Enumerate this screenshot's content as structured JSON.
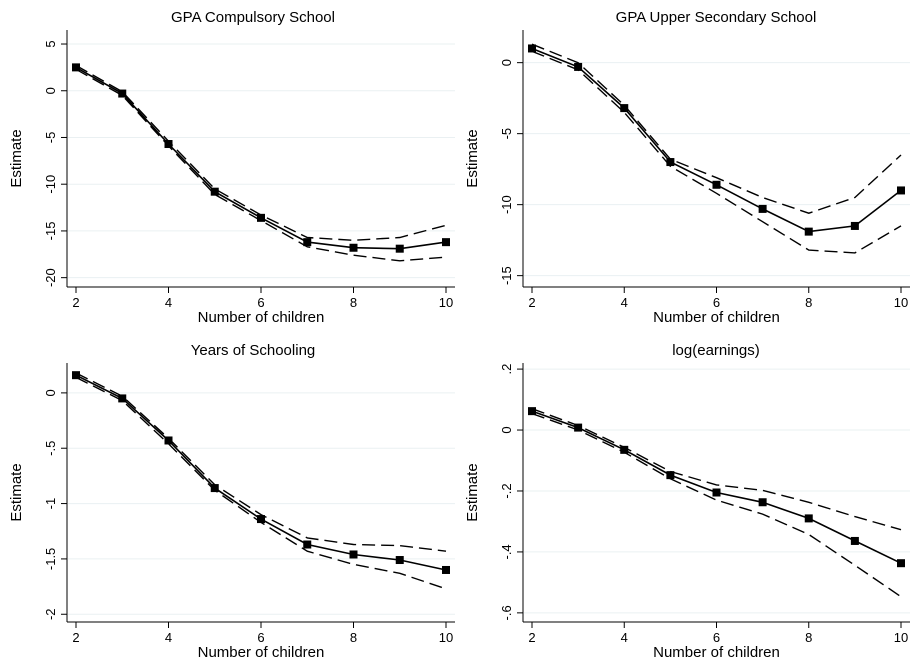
{
  "chart_data": [
    {
      "type": "line",
      "title": "GPA Compulsory School",
      "xlabel": "Number of children",
      "ylabel": "Estimate",
      "x": [
        2,
        3,
        4,
        5,
        6,
        7,
        8,
        9,
        10
      ],
      "xlim": [
        2,
        10
      ],
      "ylim": [
        -21,
        6.5
      ],
      "xticks": [
        2,
        4,
        6,
        8,
        10
      ],
      "xtick_labels": [
        "2",
        "4",
        "6",
        "8",
        "10"
      ],
      "yticks": [
        5,
        0,
        -5,
        -10,
        -15,
        -20
      ],
      "ytick_labels": [
        "5",
        "0",
        "-5",
        "-10",
        "-15",
        "-20"
      ],
      "grid": true,
      "series": [
        {
          "role": "estimate",
          "values": [
            2.5,
            -0.3,
            -5.7,
            -10.8,
            -13.6,
            -16.2,
            -16.8,
            -16.9,
            -16.2
          ]
        },
        {
          "role": "upper",
          "values": [
            2.7,
            -0.1,
            -5.4,
            -10.5,
            -13.3,
            -15.7,
            -16.0,
            -15.7,
            -14.4
          ]
        },
        {
          "role": "lower",
          "values": [
            2.3,
            -0.5,
            -5.9,
            -11.1,
            -13.9,
            -16.7,
            -17.6,
            -18.2,
            -17.8
          ]
        }
      ]
    },
    {
      "type": "line",
      "title": "GPA Upper Secondary School",
      "xlabel": "Number of children",
      "ylabel": "Estimate",
      "x": [
        2,
        3,
        4,
        5,
        6,
        7,
        8,
        9,
        10
      ],
      "xlim": [
        2,
        10
      ],
      "ylim": [
        -15.8,
        2.3
      ],
      "xticks": [
        2,
        4,
        6,
        8,
        10
      ],
      "xtick_labels": [
        "2",
        "4",
        "6",
        "8",
        "10"
      ],
      "yticks": [
        0,
        -5,
        -10,
        -15
      ],
      "ytick_labels": [
        "0",
        "-5",
        "-10",
        "-15"
      ],
      "grid": true,
      "series": [
        {
          "role": "estimate",
          "values": [
            1.0,
            -0.3,
            -3.2,
            -7.0,
            -8.6,
            -10.3,
            -11.9,
            -11.5,
            -9.0
          ]
        },
        {
          "role": "upper",
          "values": [
            1.3,
            0.0,
            -3.0,
            -6.8,
            -8.1,
            -9.5,
            -10.6,
            -9.5,
            -6.5
          ]
        },
        {
          "role": "lower",
          "values": [
            0.8,
            -0.5,
            -3.5,
            -7.3,
            -9.2,
            -11.2,
            -13.2,
            -13.4,
            -11.5
          ]
        }
      ]
    },
    {
      "type": "line",
      "title": "Years of Schooling",
      "xlabel": "Number of children",
      "ylabel": "Estimate",
      "x": [
        2,
        3,
        4,
        5,
        6,
        7,
        8,
        9,
        10
      ],
      "xlim": [
        2,
        10
      ],
      "ylim": [
        -2.07,
        0.27
      ],
      "xticks": [
        2,
        4,
        6,
        8,
        10
      ],
      "xtick_labels": [
        "2",
        "4",
        "6",
        "8",
        "10"
      ],
      "yticks": [
        0,
        -0.5,
        -1,
        -1.5,
        -2
      ],
      "ytick_labels": [
        "0",
        "-.5",
        "-1",
        "-1.5",
        "-2"
      ],
      "grid": true,
      "series": [
        {
          "role": "estimate",
          "values": [
            0.16,
            -0.05,
            -0.43,
            -0.86,
            -1.14,
            -1.37,
            -1.46,
            -1.51,
            -1.6
          ]
        },
        {
          "role": "upper",
          "values": [
            0.18,
            -0.03,
            -0.41,
            -0.83,
            -1.1,
            -1.31,
            -1.37,
            -1.38,
            -1.43
          ]
        },
        {
          "role": "lower",
          "values": [
            0.14,
            -0.07,
            -0.46,
            -0.88,
            -1.17,
            -1.43,
            -1.55,
            -1.63,
            -1.77
          ]
        }
      ]
    },
    {
      "type": "line",
      "title": "log(earnings)",
      "xlabel": "Number of children",
      "ylabel": "Estimate",
      "x": [
        2,
        3,
        4,
        5,
        6,
        7,
        8,
        9,
        10
      ],
      "xlim": [
        2,
        10
      ],
      "ylim": [
        -0.63,
        0.22
      ],
      "xticks": [
        2,
        4,
        6,
        8,
        10
      ],
      "xtick_labels": [
        "2",
        "4",
        "6",
        "8",
        "10"
      ],
      "yticks": [
        0.2,
        0,
        -0.2,
        -0.4,
        -0.6
      ],
      "ytick_labels": [
        ".2",
        "0",
        "-.2",
        "-.4",
        "-.6"
      ],
      "grid": true,
      "series": [
        {
          "role": "estimate",
          "values": [
            0.062,
            0.008,
            -0.065,
            -0.148,
            -0.205,
            -0.237,
            -0.29,
            -0.364,
            -0.437
          ]
        },
        {
          "role": "upper",
          "values": [
            0.07,
            0.015,
            -0.057,
            -0.136,
            -0.18,
            -0.198,
            -0.237,
            -0.284,
            -0.327
          ]
        },
        {
          "role": "lower",
          "values": [
            0.054,
            0.0,
            -0.073,
            -0.16,
            -0.23,
            -0.276,
            -0.343,
            -0.444,
            -0.547
          ]
        }
      ]
    }
  ]
}
